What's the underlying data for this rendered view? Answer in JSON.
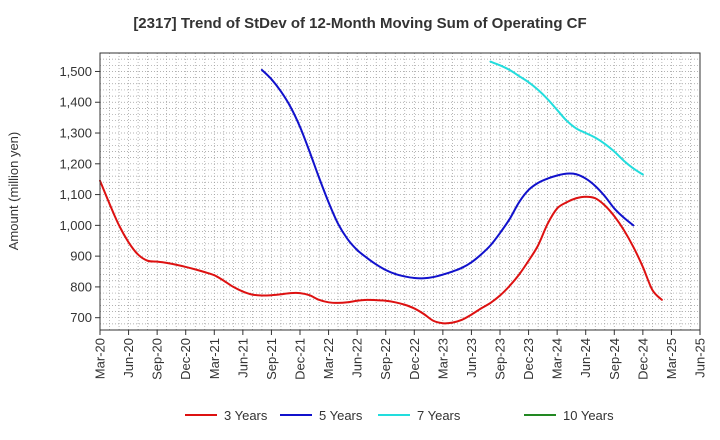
{
  "chart_data": {
    "type": "line",
    "title": "[2317]  Trend of StDev of 12-Month Moving Sum of Operating CF",
    "xlabel": "",
    "ylabel": "Amount (million yen)",
    "ylim": [
      660,
      1560
    ],
    "yticks": [
      700,
      800,
      900,
      1000,
      1100,
      1200,
      1300,
      1400,
      1500
    ],
    "ytick_labels": [
      "700",
      "800",
      "900",
      "1,000",
      "1,100",
      "1,200",
      "1,300",
      "1,400",
      "1,500"
    ],
    "x_ticks": [
      "Mar-20",
      "Jun-20",
      "Sep-20",
      "Dec-20",
      "Mar-21",
      "Jun-21",
      "Sep-21",
      "Dec-21",
      "Mar-22",
      "Jun-22",
      "Sep-22",
      "Dec-22",
      "Mar-23",
      "Jun-23",
      "Sep-23",
      "Dec-23",
      "Mar-24",
      "Jun-24",
      "Sep-24",
      "Dec-24",
      "Mar-25",
      "Jun-25"
    ],
    "grid": true,
    "legend_position": "bottom",
    "series": [
      {
        "name": "3 Years",
        "color": "#dd1111",
        "points": [
          [
            "Mar-20",
            1145
          ],
          [
            "Apr-20",
            1070
          ],
          [
            "May-20",
            1000
          ],
          [
            "Jun-20",
            945
          ],
          [
            "Jul-20",
            905
          ],
          [
            "Aug-20",
            885
          ],
          [
            "Sep-20",
            882
          ],
          [
            "Oct-20",
            878
          ],
          [
            "Nov-20",
            872
          ],
          [
            "Dec-20",
            865
          ],
          [
            "Jan-21",
            857
          ],
          [
            "Feb-21",
            848
          ],
          [
            "Mar-21",
            838
          ],
          [
            "Apr-21",
            820
          ],
          [
            "May-21",
            800
          ],
          [
            "Jun-21",
            785
          ],
          [
            "Jul-21",
            775
          ],
          [
            "Aug-21",
            772
          ],
          [
            "Sep-21",
            773
          ],
          [
            "Oct-21",
            776
          ],
          [
            "Nov-21",
            780
          ],
          [
            "Dec-21",
            780
          ],
          [
            "Jan-22",
            773
          ],
          [
            "Feb-22",
            758
          ],
          [
            "Mar-22",
            750
          ],
          [
            "Apr-22",
            748
          ],
          [
            "May-22",
            750
          ],
          [
            "Jun-22",
            755
          ],
          [
            "Jul-22",
            758
          ],
          [
            "Aug-22",
            757
          ],
          [
            "Sep-22",
            755
          ],
          [
            "Oct-22",
            750
          ],
          [
            "Nov-22",
            742
          ],
          [
            "Dec-22",
            730
          ],
          [
            "Jan-23",
            712
          ],
          [
            "Feb-23",
            690
          ],
          [
            "Mar-23",
            682
          ],
          [
            "Apr-23",
            684
          ],
          [
            "May-23",
            693
          ],
          [
            "Jun-23",
            710
          ],
          [
            "Jul-23",
            730
          ],
          [
            "Aug-23",
            748
          ],
          [
            "Sep-23",
            772
          ],
          [
            "Oct-23",
            803
          ],
          [
            "Nov-23",
            840
          ],
          [
            "Dec-23",
            885
          ],
          [
            "Jan-24",
            935
          ],
          [
            "Feb-24",
            1005
          ],
          [
            "Mar-24",
            1055
          ],
          [
            "Apr-24",
            1075
          ],
          [
            "May-24",
            1088
          ],
          [
            "Jun-24",
            1093
          ],
          [
            "Jul-24",
            1088
          ],
          [
            "Aug-24",
            1065
          ],
          [
            "Sep-24",
            1030
          ],
          [
            "Oct-24",
            985
          ],
          [
            "Nov-24",
            930
          ],
          [
            "Dec-24",
            865
          ],
          [
            "Jan-25",
            790
          ],
          [
            "Feb-25",
            758
          ]
        ]
      },
      {
        "name": "5 Years",
        "color": "#1111cc",
        "points": [
          [
            "Aug-21",
            1505
          ],
          [
            "Sep-21",
            1475
          ],
          [
            "Oct-21",
            1435
          ],
          [
            "Nov-21",
            1385
          ],
          [
            "Dec-21",
            1320
          ],
          [
            "Jan-22",
            1240
          ],
          [
            "Feb-22",
            1155
          ],
          [
            "Mar-22",
            1075
          ],
          [
            "Apr-22",
            1005
          ],
          [
            "May-22",
            955
          ],
          [
            "Jun-22",
            920
          ],
          [
            "Jul-22",
            895
          ],
          [
            "Aug-22",
            873
          ],
          [
            "Sep-22",
            855
          ],
          [
            "Oct-22",
            842
          ],
          [
            "Nov-22",
            834
          ],
          [
            "Dec-22",
            829
          ],
          [
            "Jan-23",
            828
          ],
          [
            "Feb-23",
            832
          ],
          [
            "Mar-23",
            840
          ],
          [
            "Apr-23",
            850
          ],
          [
            "May-23",
            862
          ],
          [
            "Jun-23",
            880
          ],
          [
            "Jul-23",
            905
          ],
          [
            "Aug-23",
            935
          ],
          [
            "Sep-23",
            975
          ],
          [
            "Oct-23",
            1020
          ],
          [
            "Nov-23",
            1075
          ],
          [
            "Dec-23",
            1115
          ],
          [
            "Jan-24",
            1138
          ],
          [
            "Feb-24",
            1152
          ],
          [
            "Mar-24",
            1162
          ],
          [
            "Apr-24",
            1168
          ],
          [
            "May-24",
            1166
          ],
          [
            "Jun-24",
            1152
          ],
          [
            "Jul-24",
            1128
          ],
          [
            "Aug-24",
            1095
          ],
          [
            "Sep-24",
            1055
          ],
          [
            "Oct-24",
            1025
          ],
          [
            "Nov-24",
            1000
          ]
        ]
      },
      {
        "name": "7 Years",
        "color": "#22dddd",
        "points": [
          [
            "Aug-23",
            1532
          ],
          [
            "Sep-23",
            1520
          ],
          [
            "Oct-23",
            1505
          ],
          [
            "Nov-23",
            1485
          ],
          [
            "Dec-23",
            1465
          ],
          [
            "Jan-24",
            1440
          ],
          [
            "Feb-24",
            1410
          ],
          [
            "Mar-24",
            1375
          ],
          [
            "Apr-24",
            1340
          ],
          [
            "May-24",
            1315
          ],
          [
            "Jun-24",
            1300
          ],
          [
            "Jul-24",
            1285
          ],
          [
            "Aug-24",
            1265
          ],
          [
            "Sep-24",
            1240
          ],
          [
            "Oct-24",
            1210
          ],
          [
            "Nov-24",
            1185
          ],
          [
            "Dec-24",
            1165
          ]
        ]
      },
      {
        "name": "10 Years",
        "color": "#228822",
        "points": []
      }
    ]
  }
}
